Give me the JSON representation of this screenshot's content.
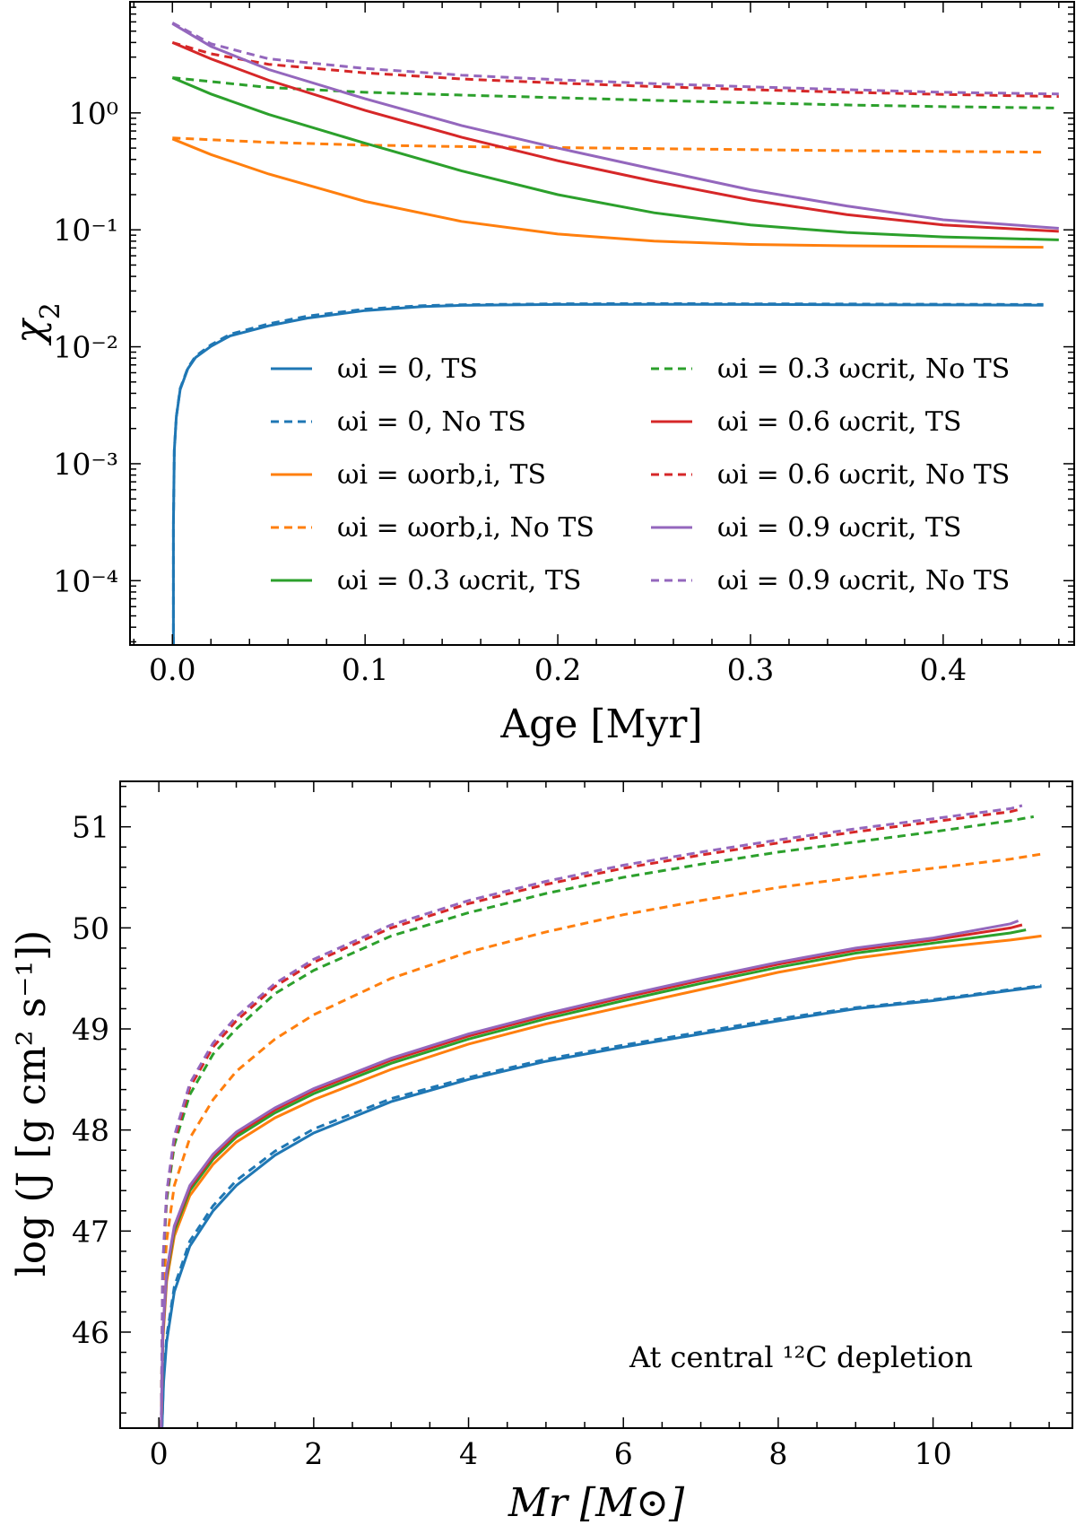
{
  "colors": {
    "blue": "#1f77b4",
    "orange": "#ff7f0e",
    "green": "#2ca02c",
    "red": "#d62728",
    "purple": "#9467bd"
  },
  "chart_data": [
    {
      "type": "line",
      "yscale": "log",
      "xlabel": "Age [Myr]",
      "ylabel": "χ2",
      "xlim": [
        -0.022,
        0.468
      ],
      "ylim_log10": [
        -4.55,
        0.95
      ],
      "xticks": [
        "0.0",
        "0.1",
        "0.2",
        "0.3",
        "0.4"
      ],
      "xtick_values": [
        0.0,
        0.1,
        0.2,
        0.3,
        0.4
      ],
      "yticks": [
        "10⁻⁴",
        "10⁻³",
        "10⁻²",
        "10⁻¹",
        "10⁰"
      ],
      "ytick_exponents": [
        -4,
        -3,
        -2,
        -1,
        0
      ],
      "legend": {
        "placement": "lower-right",
        "columns": 2
      },
      "series": [
        {
          "name": "ωi = 0, TS",
          "color": "blue",
          "dash": false,
          "x": [
            0.0005,
            0.001,
            0.002,
            0.004,
            0.008,
            0.012,
            0.02,
            0.03,
            0.05,
            0.07,
            0.1,
            0.13,
            0.15,
            0.2,
            0.25,
            0.3,
            0.35,
            0.4,
            0.452
          ],
          "y": [
            0.0003,
            0.0013,
            0.0025,
            0.0043,
            0.0065,
            0.0081,
            0.0101,
            0.0124,
            0.0151,
            0.0176,
            0.0204,
            0.0221,
            0.0226,
            0.023,
            0.0231,
            0.023,
            0.0229,
            0.0228,
            0.0227
          ]
        },
        {
          "name": "ωi = 0, No TS",
          "color": "blue",
          "dash": true,
          "x": [
            0.0005,
            0.001,
            0.002,
            0.004,
            0.008,
            0.012,
            0.02,
            0.03,
            0.05,
            0.07,
            0.1,
            0.13,
            0.15,
            0.2,
            0.25,
            0.3,
            0.35,
            0.4,
            0.452
          ],
          "y": [
            0.0003,
            0.0013,
            0.0025,
            0.0044,
            0.0066,
            0.0083,
            0.0104,
            0.0128,
            0.0157,
            0.0183,
            0.021,
            0.0225,
            0.0229,
            0.0233,
            0.0234,
            0.0233,
            0.0232,
            0.0231,
            0.023
          ]
        },
        {
          "name": "ωi = ωorb,i, TS",
          "color": "orange",
          "dash": false,
          "x": [
            0.0,
            0.02,
            0.05,
            0.1,
            0.15,
            0.2,
            0.25,
            0.3,
            0.35,
            0.4,
            0.452
          ],
          "y": [
            0.6,
            0.44,
            0.3,
            0.175,
            0.118,
            0.092,
            0.08,
            0.075,
            0.073,
            0.072,
            0.071
          ]
        },
        {
          "name": "ωi = ωorb,i, No TS",
          "color": "orange",
          "dash": true,
          "x": [
            0.0,
            0.05,
            0.1,
            0.15,
            0.2,
            0.25,
            0.3,
            0.35,
            0.4,
            0.452
          ],
          "y": [
            0.61,
            0.56,
            0.53,
            0.515,
            0.505,
            0.495,
            0.485,
            0.475,
            0.468,
            0.462
          ]
        },
        {
          "name": "ωi = 0.3 ωcrit, TS",
          "color": "green",
          "dash": false,
          "x": [
            0.0,
            0.02,
            0.05,
            0.1,
            0.15,
            0.2,
            0.25,
            0.3,
            0.35,
            0.4,
            0.46
          ],
          "y": [
            2.0,
            1.45,
            0.97,
            0.55,
            0.32,
            0.2,
            0.14,
            0.11,
            0.095,
            0.087,
            0.082
          ]
        },
        {
          "name": "ωi = 0.3 ωcrit, No TS",
          "color": "green",
          "dash": true,
          "x": [
            0.0,
            0.05,
            0.1,
            0.15,
            0.2,
            0.25,
            0.3,
            0.35,
            0.4,
            0.46
          ],
          "y": [
            2.0,
            1.65,
            1.5,
            1.42,
            1.35,
            1.28,
            1.22,
            1.17,
            1.13,
            1.1
          ]
        },
        {
          "name": "ωi = 0.6 ωcrit, TS",
          "color": "red",
          "dash": false,
          "x": [
            0.0,
            0.02,
            0.05,
            0.1,
            0.15,
            0.2,
            0.25,
            0.3,
            0.35,
            0.4,
            0.46
          ],
          "y": [
            4.0,
            2.9,
            1.9,
            1.05,
            0.62,
            0.39,
            0.26,
            0.18,
            0.135,
            0.11,
            0.097
          ]
        },
        {
          "name": "ωi = 0.6 ωcrit, No TS",
          "color": "red",
          "dash": true,
          "x": [
            0.0,
            0.02,
            0.05,
            0.1,
            0.15,
            0.2,
            0.25,
            0.3,
            0.35,
            0.4,
            0.46
          ],
          "y": [
            4.0,
            3.2,
            2.6,
            2.2,
            1.95,
            1.8,
            1.68,
            1.58,
            1.5,
            1.44,
            1.38
          ]
        },
        {
          "name": "ωi = 0.9 ωcrit, TS",
          "color": "purple",
          "dash": false,
          "x": [
            0.0,
            0.02,
            0.05,
            0.1,
            0.15,
            0.2,
            0.25,
            0.3,
            0.35,
            0.4,
            0.46
          ],
          "y": [
            5.8,
            3.7,
            2.35,
            1.32,
            0.78,
            0.5,
            0.33,
            0.22,
            0.16,
            0.122,
            0.103
          ]
        },
        {
          "name": "ωi = 0.9 ωcrit, No TS",
          "color": "purple",
          "dash": true,
          "x": [
            0.0,
            0.02,
            0.05,
            0.1,
            0.15,
            0.2,
            0.25,
            0.3,
            0.35,
            0.4,
            0.46
          ],
          "y": [
            5.9,
            3.9,
            2.9,
            2.4,
            2.1,
            1.92,
            1.78,
            1.67,
            1.58,
            1.5,
            1.45
          ]
        }
      ]
    },
    {
      "type": "line",
      "xlabel": "Mr [M⊙]",
      "ylabel": "log (J [g cm² s⁻¹])",
      "xlim": [
        -0.5,
        11.8
      ],
      "ylim": [
        45.05,
        51.45
      ],
      "xticks": [
        "0",
        "2",
        "4",
        "6",
        "8",
        "10"
      ],
      "xtick_values": [
        0,
        2,
        4,
        6,
        8,
        10
      ],
      "yticks": [
        "46",
        "47",
        "48",
        "49",
        "50",
        "51"
      ],
      "ytick_values": [
        46,
        47,
        48,
        49,
        50,
        51
      ],
      "annotation": "At central ¹²C depletion",
      "series": [
        {
          "name": "ωi = 0, TS",
          "color": "blue",
          "dash": false,
          "x": [
            0.04,
            0.06,
            0.1,
            0.2,
            0.4,
            0.7,
            1,
            1.5,
            2,
            3,
            4,
            5,
            6,
            7,
            8,
            9,
            10,
            11,
            11.4
          ],
          "y": [
            45.05,
            45.5,
            45.9,
            46.4,
            46.85,
            47.2,
            47.45,
            47.75,
            47.97,
            48.28,
            48.5,
            48.68,
            48.82,
            48.95,
            49.08,
            49.2,
            49.28,
            49.38,
            49.42
          ]
        },
        {
          "name": "ωi = 0, No TS",
          "color": "blue",
          "dash": true,
          "x": [
            0.04,
            0.06,
            0.1,
            0.2,
            0.4,
            0.7,
            1,
            1.5,
            2,
            3,
            4,
            5,
            6,
            7,
            8,
            9,
            10,
            11,
            11.4
          ],
          "y": [
            45.05,
            45.55,
            45.95,
            46.45,
            46.9,
            47.25,
            47.5,
            47.79,
            48.01,
            48.31,
            48.52,
            48.7,
            48.84,
            48.97,
            49.1,
            49.21,
            49.29,
            49.39,
            49.43
          ]
        },
        {
          "name": "ωi = ωorb,i, TS",
          "color": "orange",
          "dash": false,
          "x": [
            0.03,
            0.05,
            0.1,
            0.2,
            0.4,
            0.7,
            1,
            1.5,
            2,
            3,
            4,
            5,
            6,
            7,
            8,
            9,
            10,
            11,
            11.4
          ],
          "y": [
            45.05,
            45.9,
            46.5,
            46.95,
            47.35,
            47.66,
            47.88,
            48.12,
            48.3,
            48.6,
            48.85,
            49.05,
            49.22,
            49.39,
            49.56,
            49.7,
            49.8,
            49.88,
            49.92
          ]
        },
        {
          "name": "ωi = ωorb,i, No TS",
          "color": "orange",
          "dash": true,
          "x": [
            0.03,
            0.05,
            0.1,
            0.2,
            0.4,
            0.7,
            1,
            1.5,
            2,
            3,
            4,
            5,
            6,
            7,
            8,
            9,
            10,
            11,
            11.4
          ],
          "y": [
            45.05,
            46.3,
            46.9,
            47.45,
            47.92,
            48.3,
            48.58,
            48.9,
            49.14,
            49.5,
            49.76,
            49.96,
            50.13,
            50.27,
            50.4,
            50.5,
            50.59,
            50.68,
            50.73
          ]
        },
        {
          "name": "ωi = 0.3 ωcrit, TS",
          "color": "green",
          "dash": false,
          "x": [
            0.03,
            0.05,
            0.1,
            0.2,
            0.4,
            0.7,
            1,
            1.5,
            2,
            3,
            4,
            5,
            6,
            7,
            8,
            9,
            10,
            11,
            11.2
          ],
          "y": [
            45.05,
            45.95,
            46.55,
            47.0,
            47.4,
            47.71,
            47.93,
            48.17,
            48.36,
            48.66,
            48.9,
            49.1,
            49.28,
            49.45,
            49.61,
            49.75,
            49.85,
            49.95,
            49.98
          ]
        },
        {
          "name": "ωi = 0.3 ωcrit, No TS",
          "color": "green",
          "dash": true,
          "x": [
            0.03,
            0.05,
            0.1,
            0.2,
            0.4,
            0.7,
            1,
            1.5,
            2,
            3,
            4,
            5,
            6,
            7,
            8,
            9,
            10,
            11,
            11.3
          ],
          "y": [
            45.05,
            46.6,
            47.3,
            47.85,
            48.35,
            48.75,
            49.0,
            49.35,
            49.58,
            49.92,
            50.15,
            50.34,
            50.5,
            50.63,
            50.75,
            50.85,
            50.95,
            51.06,
            51.1
          ]
        },
        {
          "name": "ωi = 0.6 ωcrit, TS",
          "color": "red",
          "dash": false,
          "x": [
            0.03,
            0.05,
            0.1,
            0.2,
            0.4,
            0.7,
            1,
            1.5,
            2,
            3,
            4,
            5,
            6,
            7,
            8,
            9,
            10,
            11,
            11.15
          ],
          "y": [
            45.05,
            45.97,
            46.58,
            47.03,
            47.43,
            47.74,
            47.96,
            48.2,
            48.39,
            48.69,
            48.93,
            49.13,
            49.31,
            49.48,
            49.64,
            49.78,
            49.88,
            50.0,
            50.03
          ]
        },
        {
          "name": "ωi = 0.6 ωcrit, No TS",
          "color": "red",
          "dash": true,
          "x": [
            0.03,
            0.05,
            0.1,
            0.2,
            0.4,
            0.7,
            1,
            1.5,
            2,
            3,
            4,
            5,
            6,
            7,
            8,
            9,
            10,
            11,
            11.15
          ],
          "y": [
            45.05,
            46.65,
            47.35,
            47.9,
            48.42,
            48.82,
            49.08,
            49.42,
            49.66,
            50.0,
            50.24,
            50.43,
            50.59,
            50.72,
            50.84,
            50.95,
            51.05,
            51.15,
            51.18
          ]
        },
        {
          "name": "ωi = 0.9 ωcrit, TS",
          "color": "purple",
          "dash": false,
          "x": [
            0.03,
            0.05,
            0.1,
            0.2,
            0.4,
            0.7,
            1,
            1.5,
            2,
            3,
            4,
            5,
            6,
            7,
            8,
            9,
            10,
            11,
            11.1
          ],
          "y": [
            45.05,
            46.0,
            46.6,
            47.05,
            47.45,
            47.76,
            47.98,
            48.22,
            48.41,
            48.71,
            48.95,
            49.15,
            49.33,
            49.5,
            49.66,
            49.8,
            49.9,
            50.04,
            50.07
          ]
        },
        {
          "name": "ωi = 0.9 ωcrit, No TS",
          "color": "purple",
          "dash": true,
          "x": [
            0.03,
            0.05,
            0.1,
            0.2,
            0.4,
            0.7,
            1,
            1.5,
            2,
            3,
            4,
            5,
            6,
            7,
            8,
            9,
            10,
            11,
            11.15
          ],
          "y": [
            45.05,
            46.68,
            47.38,
            47.94,
            48.46,
            48.86,
            49.12,
            49.45,
            49.69,
            50.03,
            50.27,
            50.46,
            50.62,
            50.75,
            50.87,
            50.98,
            51.08,
            51.18,
            51.21
          ]
        }
      ]
    }
  ]
}
